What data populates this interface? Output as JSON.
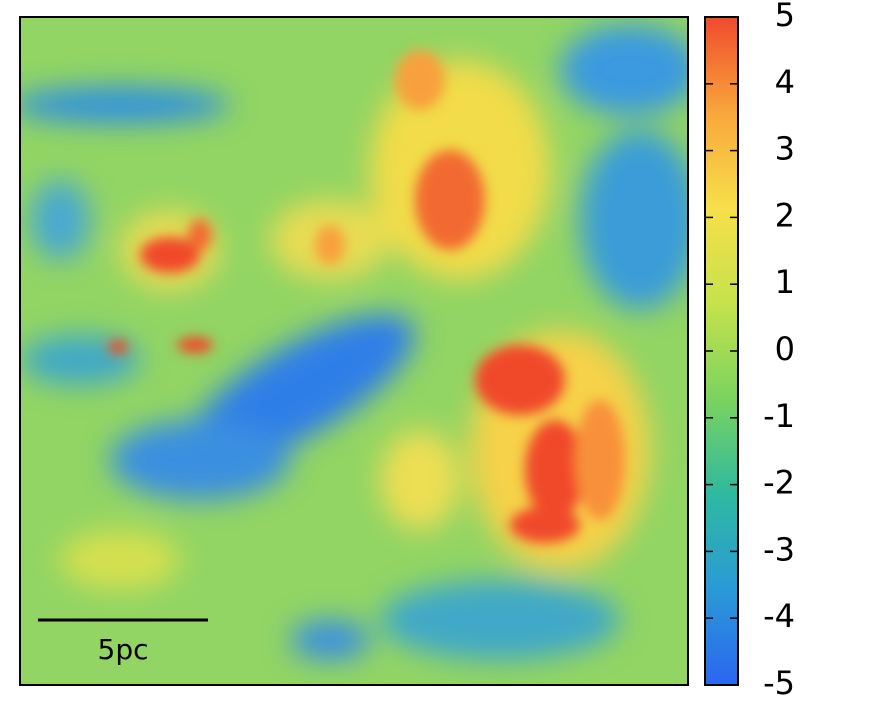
{
  "chart_data": {
    "type": "heatmap",
    "annotation": "5pc",
    "colormap": [
      "#2b66f0",
      "#2a9ad6",
      "#2fb9a0",
      "#7bd35e",
      "#c6e24c",
      "#f7df4a",
      "#f8a63c",
      "#f04a2c"
    ],
    "clim": [
      -5,
      5
    ],
    "cticks": [
      -5,
      -4,
      -3,
      -2,
      -1,
      0,
      1,
      2,
      3,
      4,
      5
    ]
  }
}
